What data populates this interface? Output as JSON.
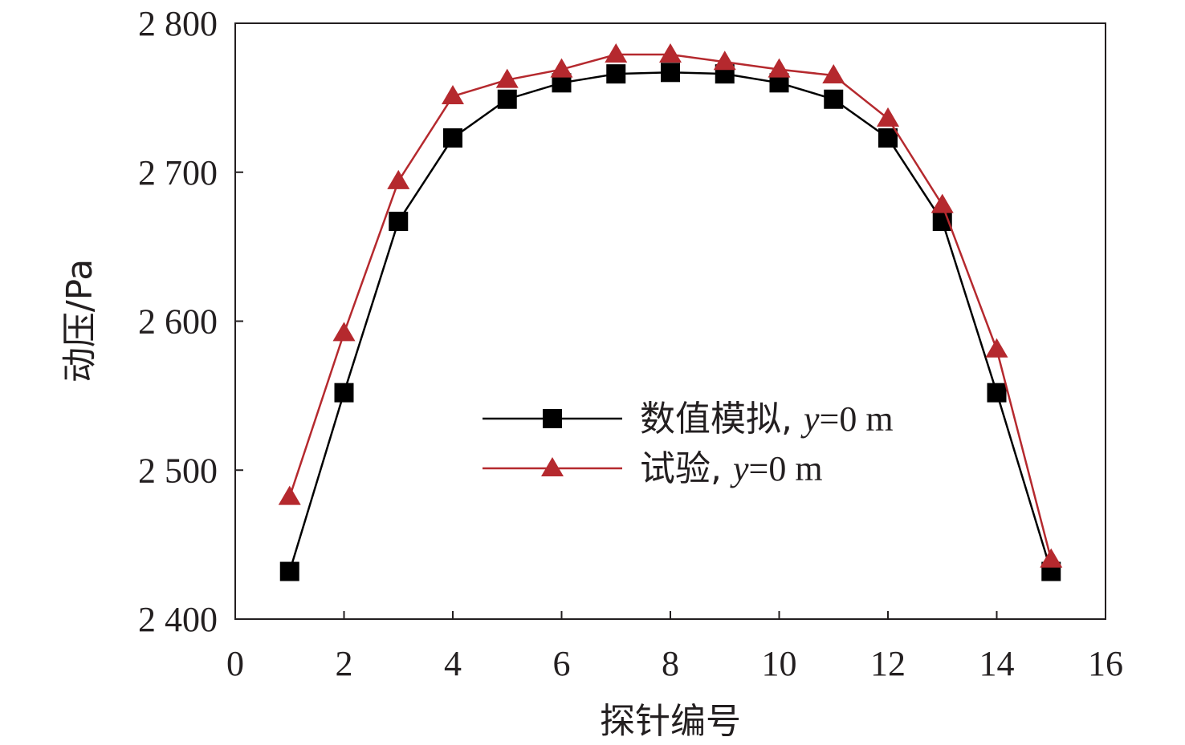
{
  "chart_data": {
    "type": "line",
    "xlabel": "探针编号",
    "ylabel": "动压/Pa",
    "xlim": [
      0,
      16
    ],
    "ylim": [
      2400,
      2800
    ],
    "xticks": [
      0,
      2,
      4,
      6,
      8,
      10,
      12,
      14,
      16
    ],
    "xtick_labels": [
      "0",
      "2",
      "4",
      "6",
      "8",
      "10",
      "12",
      "14",
      "16"
    ],
    "yticks": [
      2400,
      2500,
      2600,
      2700,
      2800
    ],
    "ytick_labels": [
      "2 400",
      "2 500",
      "2 600",
      "2 700",
      "2 800"
    ],
    "grid": false,
    "legend_position": "center-right",
    "series": [
      {
        "name": "数值模拟, y=0 m",
        "legend_prefix": "数值模拟, ",
        "legend_var": "y",
        "legend_suffix": "=0 m",
        "color": "#000000",
        "marker": "square",
        "x": [
          1,
          2,
          3,
          4,
          5,
          6,
          7,
          8,
          9,
          10,
          11,
          12,
          13,
          14,
          15
        ],
        "values": [
          2432,
          2552,
          2667,
          2723,
          2749,
          2760,
          2766,
          2767,
          2766,
          2760,
          2749,
          2723,
          2667,
          2552,
          2432
        ]
      },
      {
        "name": "试验, y=0 m",
        "legend_prefix": "试验, ",
        "legend_var": "y",
        "legend_suffix": "=0 m",
        "color": "#b5292e",
        "marker": "triangle",
        "x": [
          1,
          2,
          3,
          4,
          5,
          6,
          7,
          8,
          9,
          10,
          11,
          12,
          13,
          14,
          15
        ],
        "values": [
          2482,
          2592,
          2694,
          2751,
          2762,
          2769,
          2779,
          2779,
          2774,
          2769,
          2765,
          2736,
          2678,
          2581,
          2440
        ]
      }
    ]
  }
}
